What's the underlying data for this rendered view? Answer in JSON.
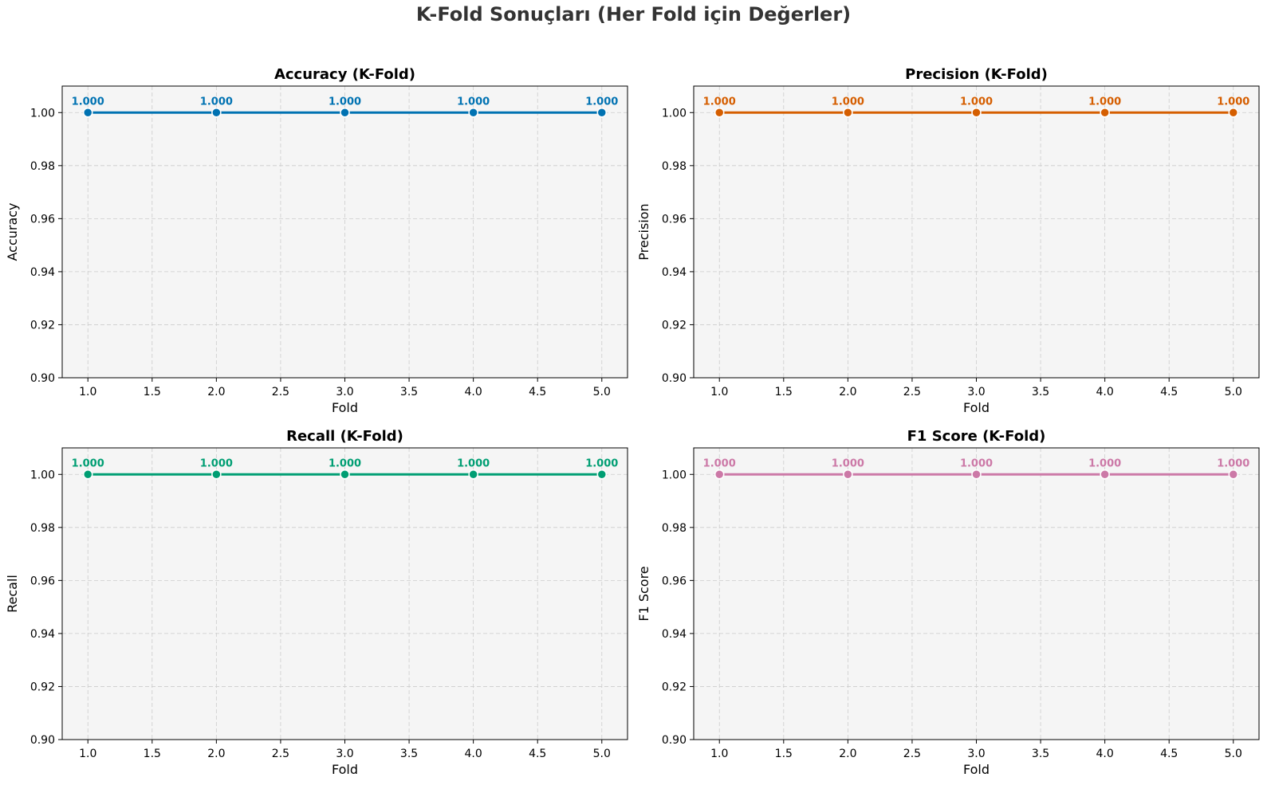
{
  "figure": {
    "title": "K-Fold Sonuçları (Her Fold için Değerler)"
  },
  "chart_data": [
    {
      "type": "line",
      "title": "Accuracy (K-Fold)",
      "xlabel": "Fold",
      "ylabel": "Accuracy",
      "color": "#0072B2",
      "x": [
        1,
        2,
        3,
        4,
        5
      ],
      "values": [
        1.0,
        1.0,
        1.0,
        1.0,
        1.0
      ],
      "data_labels": [
        "1.000",
        "1.000",
        "1.000",
        "1.000",
        "1.000"
      ],
      "xlim": [
        0.8,
        5.2
      ],
      "ylim": [
        0.9,
        1.01
      ],
      "xticks": [
        "1.0",
        "1.5",
        "2.0",
        "2.5",
        "3.0",
        "3.5",
        "4.0",
        "4.5",
        "5.0"
      ],
      "yticks": [
        "0.90",
        "0.92",
        "0.94",
        "0.96",
        "0.98",
        "1.00"
      ],
      "grid": true
    },
    {
      "type": "line",
      "title": "Precision (K-Fold)",
      "xlabel": "Fold",
      "ylabel": "Precision",
      "color": "#D55E00",
      "x": [
        1,
        2,
        3,
        4,
        5
      ],
      "values": [
        1.0,
        1.0,
        1.0,
        1.0,
        1.0
      ],
      "data_labels": [
        "1.000",
        "1.000",
        "1.000",
        "1.000",
        "1.000"
      ],
      "xlim": [
        0.8,
        5.2
      ],
      "ylim": [
        0.9,
        1.01
      ],
      "xticks": [
        "1.0",
        "1.5",
        "2.0",
        "2.5",
        "3.0",
        "3.5",
        "4.0",
        "4.5",
        "5.0"
      ],
      "yticks": [
        "0.90",
        "0.92",
        "0.94",
        "0.96",
        "0.98",
        "1.00"
      ],
      "grid": true
    },
    {
      "type": "line",
      "title": "Recall (K-Fold)",
      "xlabel": "Fold",
      "ylabel": "Recall",
      "color": "#009E73",
      "x": [
        1,
        2,
        3,
        4,
        5
      ],
      "values": [
        1.0,
        1.0,
        1.0,
        1.0,
        1.0
      ],
      "data_labels": [
        "1.000",
        "1.000",
        "1.000",
        "1.000",
        "1.000"
      ],
      "xlim": [
        0.8,
        5.2
      ],
      "ylim": [
        0.9,
        1.01
      ],
      "xticks": [
        "1.0",
        "1.5",
        "2.0",
        "2.5",
        "3.0",
        "3.5",
        "4.0",
        "4.5",
        "5.0"
      ],
      "yticks": [
        "0.90",
        "0.92",
        "0.94",
        "0.96",
        "0.98",
        "1.00"
      ],
      "grid": true
    },
    {
      "type": "line",
      "title": "F1 Score (K-Fold)",
      "xlabel": "Fold",
      "ylabel": "F1 Score",
      "color": "#CC79A7",
      "x": [
        1,
        2,
        3,
        4,
        5
      ],
      "values": [
        1.0,
        1.0,
        1.0,
        1.0,
        1.0
      ],
      "data_labels": [
        "1.000",
        "1.000",
        "1.000",
        "1.000",
        "1.000"
      ],
      "xlim": [
        0.8,
        5.2
      ],
      "ylim": [
        0.9,
        1.01
      ],
      "xticks": [
        "1.0",
        "1.5",
        "2.0",
        "2.5",
        "3.0",
        "3.5",
        "4.0",
        "4.5",
        "5.0"
      ],
      "yticks": [
        "0.90",
        "0.92",
        "0.94",
        "0.96",
        "0.98",
        "1.00"
      ],
      "grid": true
    }
  ]
}
